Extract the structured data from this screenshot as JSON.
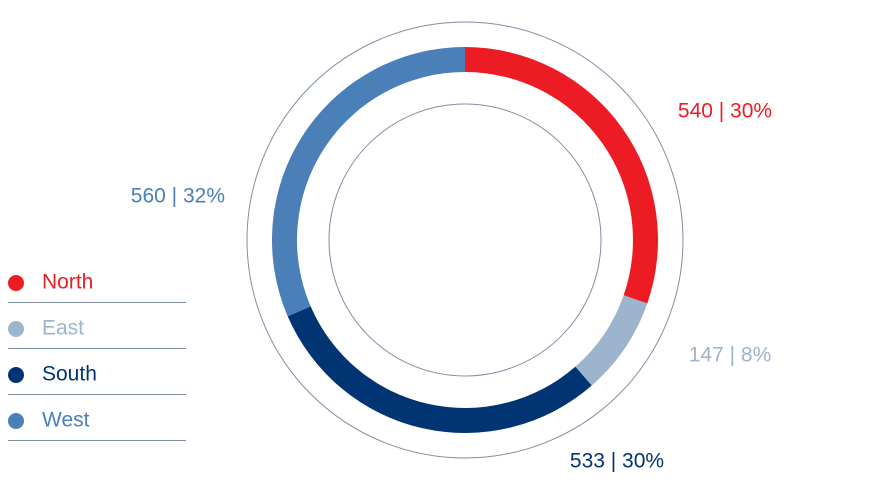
{
  "chart_data": {
    "type": "donut",
    "categories": [
      "North",
      "East",
      "South",
      "West"
    ],
    "values": [
      540,
      147,
      533,
      560
    ],
    "value_labels": [
      "540 | 30%",
      "147 | 8%",
      "533 | 30%",
      "560 | 32%"
    ],
    "colors": [
      "#ed1c24",
      "#9db5cc",
      "#003473",
      "#4a7fb8"
    ],
    "legend": "left"
  }
}
